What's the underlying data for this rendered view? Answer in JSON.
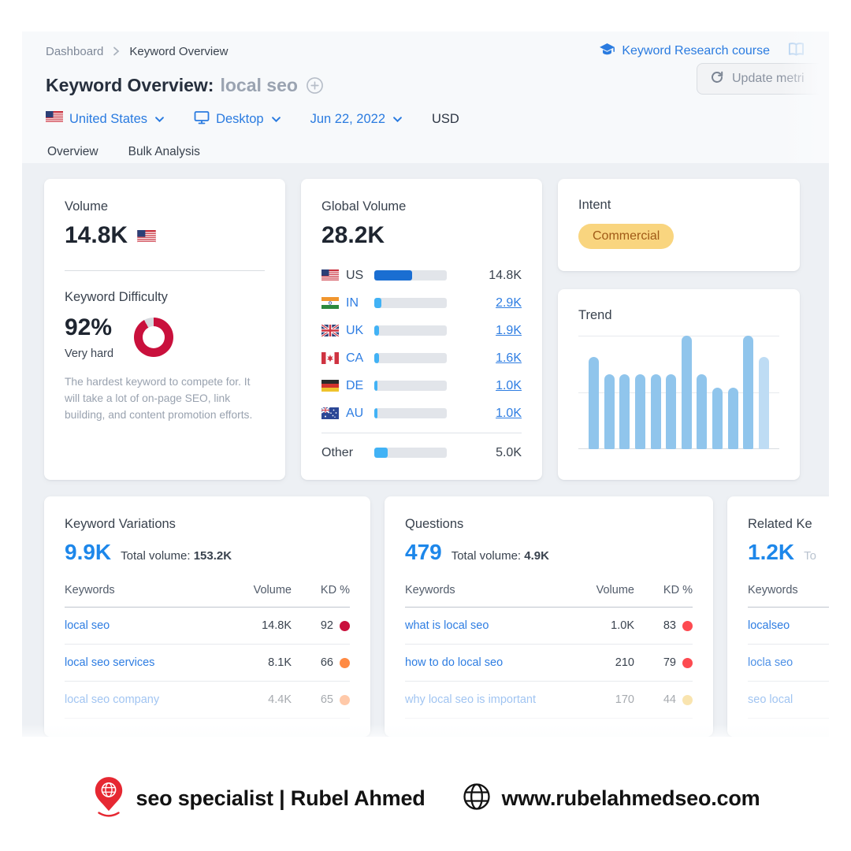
{
  "breadcrumb": {
    "items": [
      "Dashboard",
      "Keyword Overview"
    ]
  },
  "header": {
    "course_link": "Keyword Research course",
    "title": "Keyword Overview:",
    "title_keyword": "local seo",
    "update_button": "Update metri",
    "filters": {
      "country": "United States",
      "device": "Desktop",
      "date": "Jun 22, 2022",
      "currency": "USD"
    },
    "tabs": [
      {
        "label": "Overview",
        "active": true
      },
      {
        "label": "Bulk Analysis",
        "active": false
      }
    ]
  },
  "volume_card": {
    "label": "Volume",
    "value": "14.8K",
    "difficulty_label": "Keyword Difficulty",
    "difficulty": {
      "percent": "92%",
      "percent_value": 92,
      "level": "Very hard",
      "ring_color": "#c9103c",
      "ring_track_color": "#d6d9de"
    },
    "description": "The hardest keyword to compete for. It will take a lot of on-page SEO, link building, and content promotion efforts."
  },
  "global_volume_card": {
    "label": "Global Volume",
    "value": "28.2K",
    "rows": [
      {
        "code": "US",
        "value": "14.8K",
        "share_pct": 52,
        "bar_color": "#1a6ed2"
      },
      {
        "code": "IN",
        "value": "2.9K",
        "share_pct": 10,
        "bar_color": "#41b2f5"
      },
      {
        "code": "UK",
        "value": "1.9K",
        "share_pct": 7,
        "bar_color": "#41b2f5"
      },
      {
        "code": "CA",
        "value": "1.6K",
        "share_pct": 6,
        "bar_color": "#41b2f5"
      },
      {
        "code": "DE",
        "value": "1.0K",
        "share_pct": 4,
        "bar_color": "#41b2f5"
      },
      {
        "code": "AU",
        "value": "1.0K",
        "share_pct": 4,
        "bar_color": "#41b2f5"
      }
    ],
    "other": {
      "label": "Other",
      "value": "5.0K",
      "share_pct": 18,
      "bar_color": "#41b2f5"
    }
  },
  "intent_card": {
    "label": "Intent",
    "badge": "Commercial",
    "badge_bg": "#f9d57f",
    "badge_text_color": "#a05a17"
  },
  "trend_card": {
    "label": "Trend"
  },
  "chart_data": {
    "type": "bar",
    "title": "Trend",
    "x": [
      1,
      2,
      3,
      4,
      5,
      6,
      7,
      8,
      9,
      10,
      11,
      12
    ],
    "values": [
      81,
      66,
      66,
      66,
      66,
      66,
      100,
      66,
      54,
      54,
      100,
      81
    ],
    "ylim": [
      0,
      100
    ],
    "xlabel": "",
    "ylabel": "",
    "grid": "horizontal, 3 lines (0%, 50%, 100%)",
    "legend": "none",
    "bar_color": "#90c5ec",
    "bar_color_light": "#bedcf4"
  },
  "variations_card": {
    "label": "Keyword Variations",
    "count": "9.9K",
    "total_label": "Total volume:",
    "total_value": "153.2K",
    "col_keywords": "Keywords",
    "col_volume": "Volume",
    "col_kd": "KD %",
    "rows": [
      {
        "keyword": "local seo",
        "volume": "14.8K",
        "kd": "92",
        "kd_color": "#c9103c"
      },
      {
        "keyword": "local seo services",
        "volume": "8.1K",
        "kd": "66",
        "kd_color": "#ff8a43"
      },
      {
        "keyword": "local seo company",
        "volume": "4.4K",
        "kd": "65",
        "kd_color": "#ff8a43"
      }
    ]
  },
  "questions_card": {
    "label": "Questions",
    "count": "479",
    "total_label": "Total volume:",
    "total_value": "4.9K",
    "col_keywords": "Keywords",
    "col_volume": "Volume",
    "col_kd": "KD %",
    "rows": [
      {
        "keyword": "what is local seo",
        "volume": "1.0K",
        "kd": "83",
        "kd_color": "#fd4a50"
      },
      {
        "keyword": "how to do local seo",
        "volume": "210",
        "kd": "79",
        "kd_color": "#fd4a50"
      },
      {
        "keyword": "why local seo is important",
        "volume": "170",
        "kd": "44",
        "kd_color": "#f3c550"
      }
    ]
  },
  "related_card": {
    "label": "Related Ke",
    "count": "1.2K",
    "suffix": "To",
    "col_keywords": "Keywords",
    "rows": [
      {
        "keyword": "localseo"
      },
      {
        "keyword": "locla seo"
      },
      {
        "keyword": "seo local"
      }
    ]
  },
  "footer": {
    "brand_name": "seo specialist | Rubel Ahmed",
    "website": "www.rubelahmedseo.com"
  },
  "icons": {
    "graduation-cap-icon": "course link",
    "book-icon": "top right corner",
    "refresh-icon": "update button",
    "circle-plus-icon": "after keyword title",
    "monitor-icon": "desktop filter",
    "chevron-down-icon": "dropdown selectors",
    "flag-icons": [
      "US",
      "IN",
      "UK",
      "CA",
      "DE",
      "AU"
    ],
    "location-pin-icon": "footer logo",
    "globe-icon": "footer website"
  },
  "theme": {
    "accent_blue": "#2f88e8",
    "link_blue": "#2e7de2",
    "content_bg": "#edf0f4",
    "header_bg": "#f7f9fb"
  }
}
